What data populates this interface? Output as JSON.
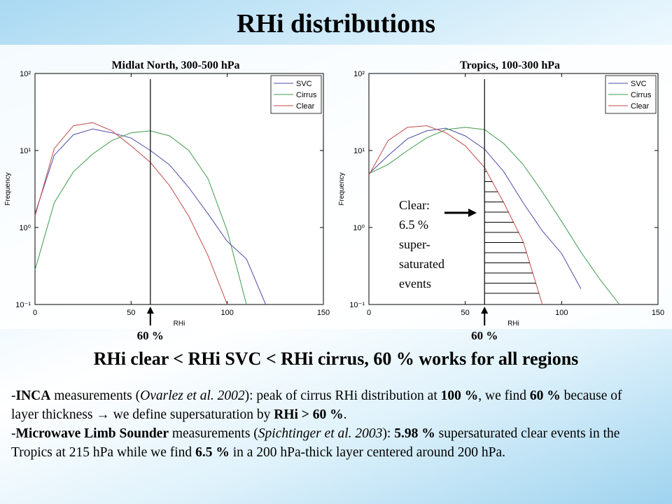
{
  "slide": {
    "title": "RHi distributions",
    "conclusion": "RHi clear < RHi SVC < RHi cirrus, 60 % works for all regions",
    "bullets": [
      [
        "-",
        "INCA",
        " measurements (",
        "Ovarlez et al. 2002",
        "): peak of cirrus RHi distribution at ",
        "100 %",
        ", we find ",
        "60 %",
        " because of  layer thickness → we define supersaturation by ",
        "RHi > 60 %",
        "."
      ],
      [
        "-",
        "Microwave Limb Sounder",
        " measurements (",
        "Spichtinger et al. 2003",
        "): ",
        "5.98 %",
        " supersaturated clear events in the Tropics at 215 hPa while we find ",
        "6.5 %",
        " in a 200 hPa-thick layer centered around 200 hPa."
      ]
    ]
  },
  "chart_data": [
    {
      "type": "line",
      "title": "Midlat North, 300-500 hPa",
      "xlabel": "RHi",
      "ylabel": "Frequency",
      "x": [
        0,
        10,
        20,
        30,
        40,
        50,
        60,
        70,
        80,
        90,
        100,
        110,
        120
      ],
      "xlim": [
        0,
        150
      ],
      "xticks": [
        0,
        50,
        100,
        150
      ],
      "ylim": [
        0.1,
        100
      ],
      "log_y": true,
      "yticks": [
        {
          "value": 0.1,
          "label": "10⁻¹"
        },
        {
          "value": 1,
          "label": "10⁰"
        },
        {
          "value": 10,
          "label": "10¹"
        },
        {
          "value": 100,
          "label": "10²"
        }
      ],
      "legend": "upper right",
      "threshold": {
        "value": 60,
        "label": "60 %"
      },
      "series": [
        {
          "name": "SVC",
          "color": "#4b4ba6",
          "values": [
            1.5,
            8.7,
            16,
            19,
            17,
            14.5,
            10,
            6.5,
            3.3,
            1.5,
            0.66,
            0.39,
            0.1
          ]
        },
        {
          "name": "Cirrus",
          "color": "#3e9a4c",
          "values": [
            0.28,
            2.1,
            5.3,
            9,
            13.5,
            17,
            18,
            15.5,
            10,
            4.3,
            0.9,
            0.1,
            null
          ]
        },
        {
          "name": "Clear",
          "color": "#c24a4a",
          "values": [
            1.4,
            10.6,
            21,
            23,
            18,
            11.5,
            7,
            3.5,
            1.4,
            0.43,
            0.1,
            null,
            null
          ]
        }
      ]
    },
    {
      "type": "line",
      "title": "Tropics, 100-300 hPa",
      "xlabel": "RHi",
      "ylabel": "Frequency",
      "x": [
        0,
        10,
        20,
        30,
        40,
        50,
        60,
        70,
        80,
        90,
        100,
        110,
        120,
        130
      ],
      "xlim": [
        0,
        150
      ],
      "xticks": [
        0,
        50,
        100,
        150
      ],
      "ylim": [
        0.1,
        100
      ],
      "log_y": true,
      "yticks": [
        {
          "value": 0.1,
          "label": "10⁻¹"
        },
        {
          "value": 1,
          "label": "10⁰"
        },
        {
          "value": 10,
          "label": "10¹"
        },
        {
          "value": 100,
          "label": "10²"
        }
      ],
      "legend": "upper right",
      "threshold": {
        "value": 60,
        "label": "60 %"
      },
      "hatch": true,
      "annotation": [
        "Clear:",
        "6.5 %",
        "super-",
        "saturated",
        "events"
      ],
      "series": [
        {
          "name": "SVC",
          "color": "#4b4ba6",
          "values": [
            5,
            8.6,
            14.2,
            18,
            19.5,
            15.5,
            10.4,
            5.3,
            2.1,
            0.9,
            0.46,
            0.16,
            null,
            null
          ]
        },
        {
          "name": "Cirrus",
          "color": "#3e9a4c",
          "values": [
            5,
            6.6,
            10,
            14.6,
            18.7,
            20,
            18.7,
            12.3,
            6.6,
            2.9,
            1.2,
            0.48,
            0.21,
            0.1
          ]
        },
        {
          "name": "Clear",
          "color": "#c24a4a",
          "values": [
            4.8,
            13.5,
            20,
            21,
            17,
            11.5,
            6,
            2.1,
            0.66,
            0.1,
            null,
            null,
            null,
            null
          ]
        }
      ]
    }
  ]
}
